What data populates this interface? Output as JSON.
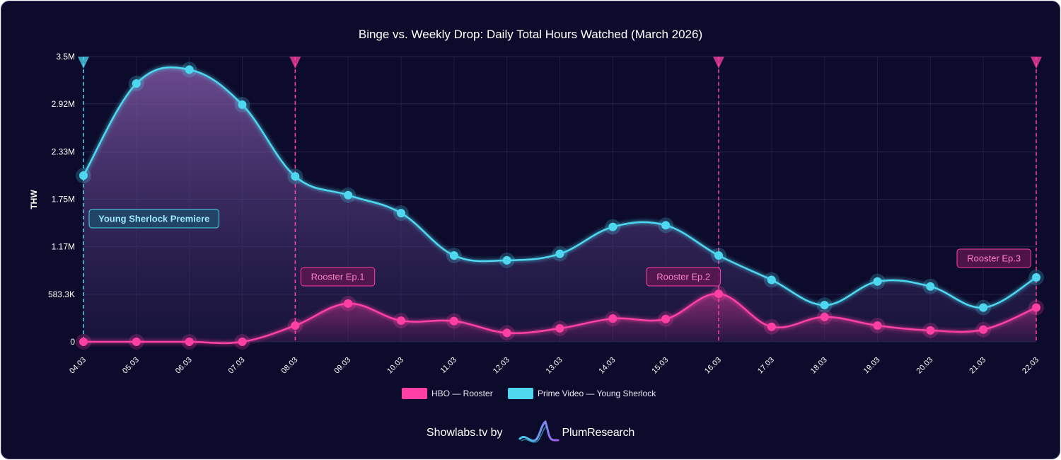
{
  "chart_data": {
    "type": "line",
    "title": "Binge vs. Weekly Drop: Daily Total Hours Watched (March 2026)",
    "ylabel": "THW",
    "xlabel": "",
    "ylim": [
      0,
      3500000
    ],
    "yticks": [
      0,
      583300,
      1170000,
      1750000,
      2330000,
      2920000,
      3500000
    ],
    "ytick_labels": [
      "0",
      "583.3K",
      "1.17M",
      "1.75M",
      "2.33M",
      "2.92M",
      "3.5M"
    ],
    "categories": [
      "04.03",
      "05.03",
      "06.03",
      "07.03",
      "08.03",
      "09.03",
      "10.03",
      "11.03",
      "12.03",
      "13.03",
      "14.03",
      "15.03",
      "16.03",
      "17.03",
      "18.03",
      "19.03",
      "20.03",
      "21.03",
      "22.03"
    ],
    "grid": true,
    "legend": "bottom",
    "series": [
      {
        "name": "HBO — Rooster",
        "color": "#ff3fa4",
        "values": [
          0,
          0,
          0,
          0,
          200000,
          470000,
          260000,
          255000,
          110000,
          165000,
          285000,
          280000,
          590000,
          185000,
          305000,
          200000,
          140000,
          150000,
          420000
        ]
      },
      {
        "name": "Prime Video — Young Sherlock",
        "color": "#4dd8f0",
        "values": [
          2040000,
          3170000,
          3340000,
          2910000,
          2030000,
          1800000,
          1580000,
          1060000,
          1000000,
          1080000,
          1410000,
          1430000,
          1060000,
          760000,
          450000,
          740000,
          680000,
          420000,
          790000
        ]
      }
    ],
    "annotations": [
      {
        "x": "04.03",
        "label": "Young Sherlock Premiere",
        "series": 1
      },
      {
        "x": "08.03",
        "label": "Rooster Ep.1",
        "series": 0
      },
      {
        "x": "16.03",
        "label": "Rooster Ep.2",
        "series": 0
      },
      {
        "x": "22.03",
        "label": "Rooster Ep.3",
        "series": 0
      }
    ]
  },
  "footer": {
    "prefix": "Showlabs.tv by",
    "brand": "PlumResearch"
  }
}
